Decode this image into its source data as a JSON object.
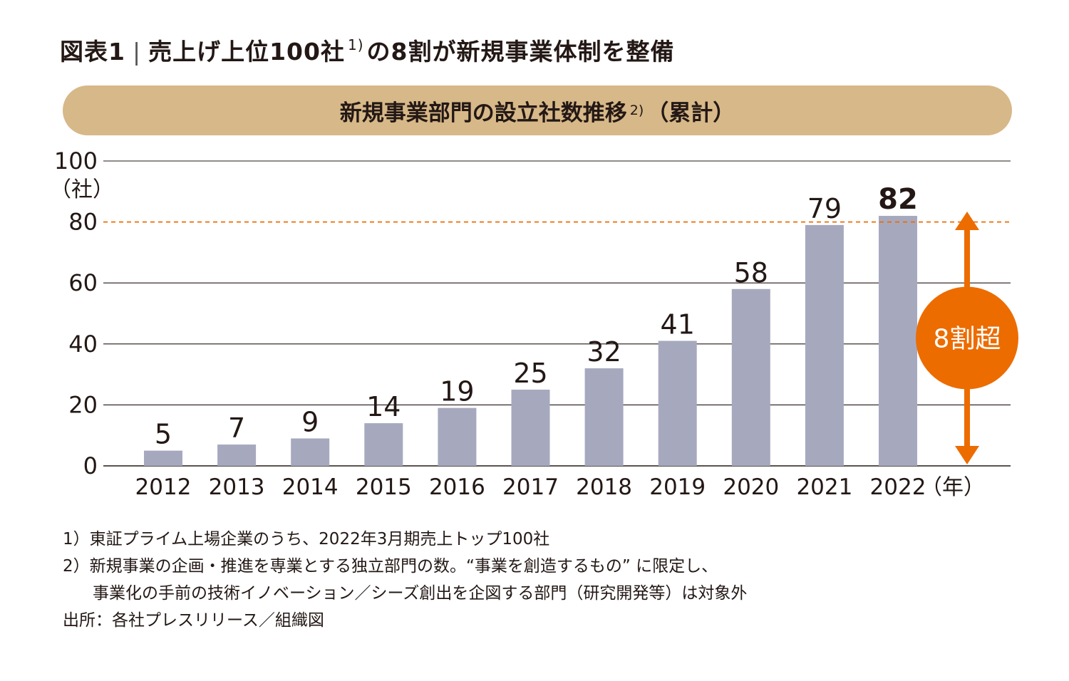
{
  "header": {
    "figure_label": "図表1",
    "title_main": "売上げ上位100社",
    "title_note_ref": "1)",
    "title_rest": "の8割が新規事業体制を整備"
  },
  "banner": {
    "text": "新規事業部門の設立社数推移",
    "note_ref": "2)",
    "suffix": "（累計）"
  },
  "chart_data": {
    "type": "bar",
    "categories": [
      "2012",
      "2013",
      "2014",
      "2015",
      "2016",
      "2017",
      "2018",
      "2019",
      "2020",
      "2021",
      "2022"
    ],
    "values": [
      5,
      7,
      9,
      14,
      19,
      25,
      32,
      41,
      58,
      79,
      82
    ],
    "ylim": [
      0,
      100
    ],
    "yticks": [
      0,
      20,
      40,
      60,
      80,
      100
    ],
    "ylabel": "（社）",
    "xlabel": "（年）",
    "reference_line": {
      "value": 80,
      "style": "dashed"
    },
    "highlight": {
      "category": "2022",
      "bold_label": true
    },
    "annotation": {
      "text": "8割超",
      "from": 0,
      "to": 82
    },
    "bar_color": "#a6a9be",
    "reference_color": "#ec6c00",
    "annotation_color": "#ec6c00",
    "gridlines": true
  },
  "notes": {
    "note1": "1）東証プライム上場企業のうち、2022年3月期売上トップ100社",
    "note2_line1": "2）新規事業の企画・推進を専業とする独立部門の数。“事業を創造するもの” に限定し、",
    "note2_line2": "事業化の手前の技術イノベーション／シーズ創出を企図する部門（研究開発等）は対象外",
    "source": "出所：各社プレスリリース／組織図"
  }
}
